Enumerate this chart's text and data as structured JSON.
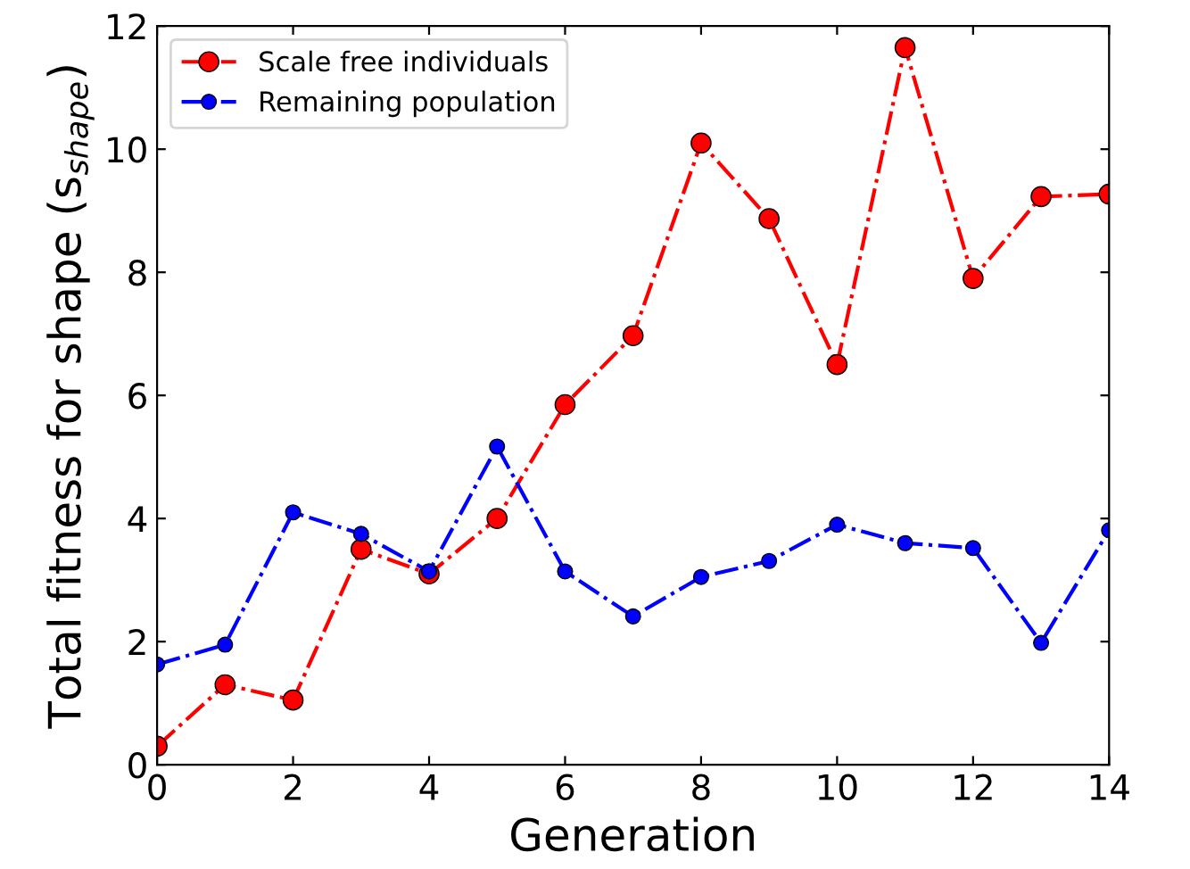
{
  "chart_data": {
    "type": "line",
    "xlabel": "Generation",
    "ylabel": "Total fitness for shape (s$_{shape}$)",
    "x": [
      0,
      1,
      2,
      3,
      4,
      5,
      6,
      7,
      8,
      9,
      10,
      11,
      12,
      13,
      14
    ],
    "series": [
      {
        "name": "Scale free individuals",
        "color": "#ff0000",
        "values": [
          0.3,
          1.3,
          1.05,
          3.5,
          3.1,
          4.0,
          5.85,
          6.97,
          10.1,
          8.87,
          6.5,
          11.65,
          7.9,
          9.23,
          9.27
        ]
      },
      {
        "name": "Remaining population",
        "color": "#0000ff",
        "values": [
          1.63,
          1.95,
          4.1,
          3.75,
          3.14,
          5.17,
          3.14,
          2.41,
          3.05,
          3.31,
          3.9,
          3.6,
          3.52,
          1.98,
          3.81
        ]
      }
    ],
    "xlim": [
      0,
      14
    ],
    "xticks": [
      0,
      2,
      4,
      6,
      8,
      10,
      12,
      14
    ],
    "ylim": [
      0,
      12
    ],
    "yticks": [
      0,
      2,
      4,
      6,
      8,
      10,
      12
    ],
    "marker": "circle",
    "line_style": "dashdot",
    "legend": "top left",
    "grid": false
  }
}
